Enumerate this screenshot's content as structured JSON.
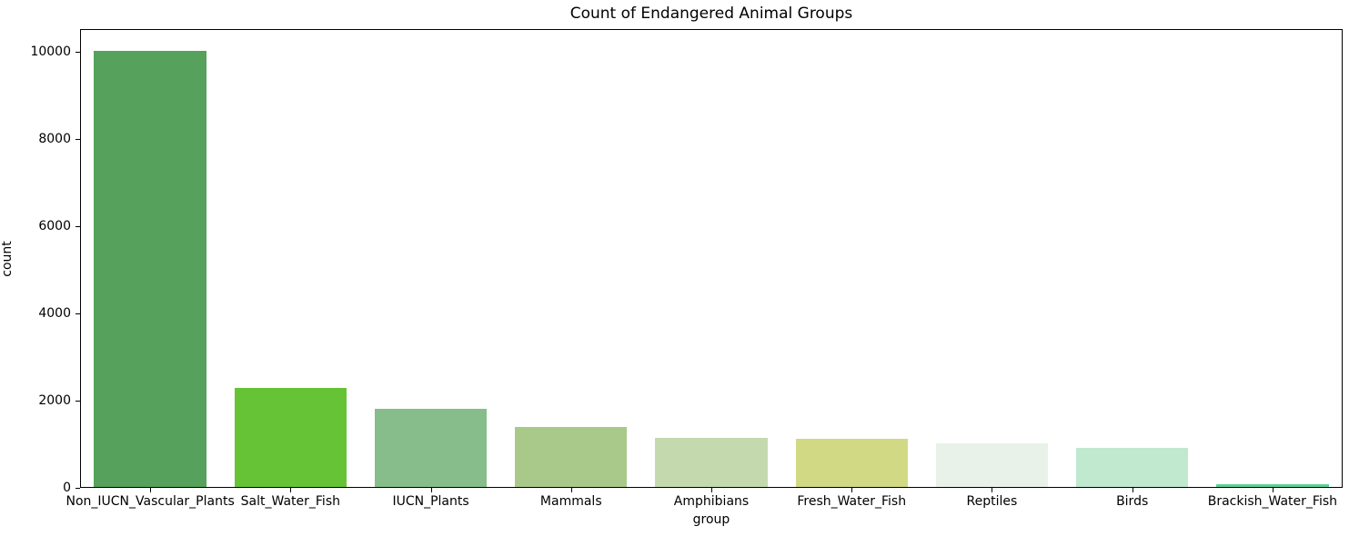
{
  "chart_data": {
    "type": "bar",
    "title": "Count of Endangered Animal Groups",
    "xlabel": "group",
    "ylabel": "count",
    "categories": [
      "Non_IUCN_Vascular_Plants",
      "Salt_Water_Fish",
      "IUCN_Plants",
      "Mammals",
      "Amphibians",
      "Fresh_Water_Fish",
      "Reptiles",
      "Birds",
      "Brackish_Water_Fish"
    ],
    "values": [
      10000,
      2270,
      1790,
      1370,
      1120,
      1100,
      1000,
      890,
      70
    ],
    "bar_colors": [
      "#56a15c",
      "#67c336",
      "#86bd8b",
      "#a9c98b",
      "#c5d9af",
      "#d1d984",
      "#e9f2e9",
      "#c0e9cf",
      "#60cf96"
    ],
    "ylim": [
      0,
      10515
    ],
    "yticks": [
      0,
      2000,
      4000,
      6000,
      8000,
      10000
    ],
    "grid": false,
    "legend": null,
    "bar_width_fraction": 0.8
  }
}
